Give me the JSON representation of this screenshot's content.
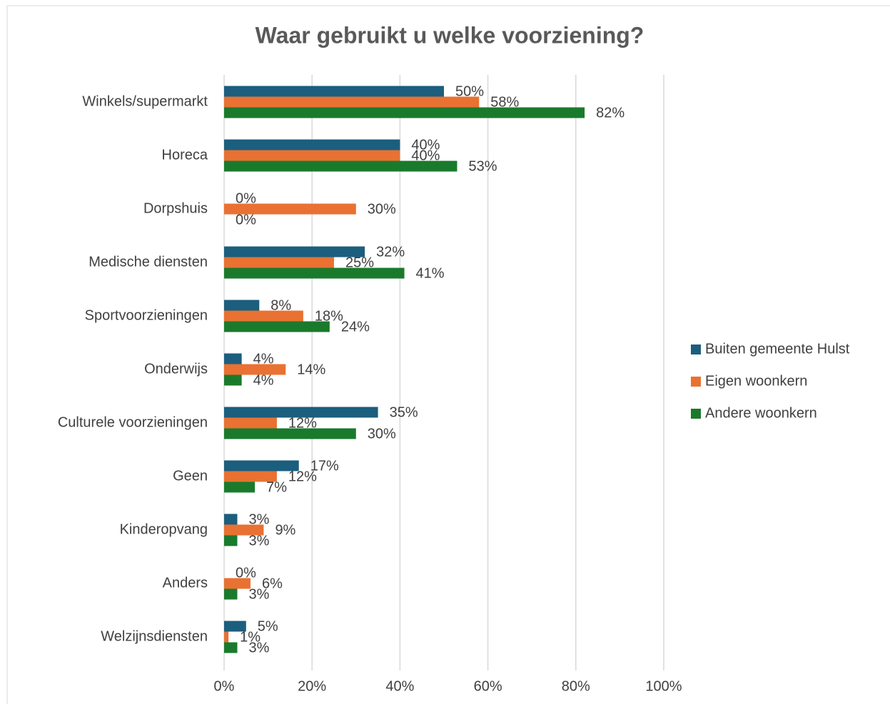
{
  "chart_data": {
    "type": "hbar",
    "title": "Waar gebruikt u welke voorziening?",
    "categories": [
      "Winkels/supermarkt",
      "Horeca",
      "Dorpshuis",
      "Medische diensten",
      "Sportvoorzieningen",
      "Onderwijs",
      "Culturele voorzieningen",
      "Geen",
      "Kinderopvang",
      "Anders",
      "Welzijnsdiensten"
    ],
    "series": [
      {
        "name": "Buiten gemeente Hulst",
        "color": "#1b5e7e",
        "values": [
          50,
          40,
          0,
          32,
          8,
          4,
          35,
          17,
          3,
          0,
          5
        ],
        "value_labels": [
          "50%",
          "40%",
          "0%",
          "32%",
          "8%",
          "4%",
          "35%",
          "17%",
          "3%",
          "0%",
          "5%"
        ]
      },
      {
        "name": "Eigen woonkern",
        "color": "#e97132",
        "values": [
          58,
          40,
          30,
          25,
          18,
          14,
          12,
          12,
          9,
          6,
          1
        ],
        "value_labels": [
          "58%",
          "40%",
          "30%",
          "25%",
          "18%",
          "14%",
          "12%",
          "12%",
          "9%",
          "6%",
          "1%"
        ]
      },
      {
        "name": "Andere woonkern",
        "color": "#1a7a2c",
        "values": [
          82,
          53,
          0,
          41,
          24,
          4,
          30,
          7,
          3,
          3,
          3
        ],
        "value_labels": [
          "82%",
          "53%",
          "0%",
          "41%",
          "24%",
          "4%",
          "30%",
          "7%",
          "3%",
          "3%",
          "3%"
        ]
      }
    ],
    "xlim": [
      0,
      100
    ],
    "xticks": [
      {
        "value": 0,
        "label": "0%"
      },
      {
        "value": 20,
        "label": "20%"
      },
      {
        "value": 40,
        "label": "40%"
      },
      {
        "value": 60,
        "label": "60%"
      },
      {
        "value": 80,
        "label": "80%"
      },
      {
        "value": 100,
        "label": "100%"
      }
    ],
    "grid": true,
    "legend": "right"
  }
}
